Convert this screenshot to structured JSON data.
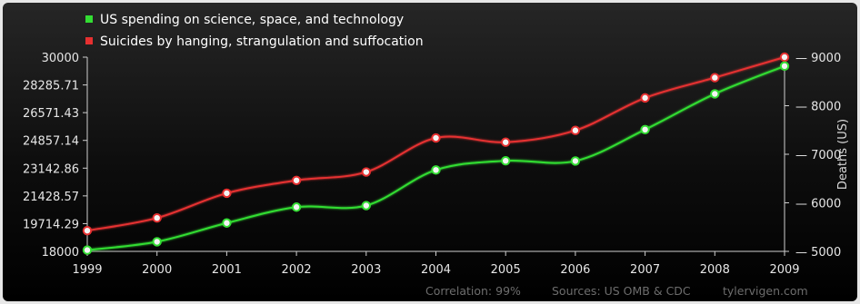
{
  "chart_data": {
    "type": "line",
    "categories": [
      "1999",
      "2000",
      "2001",
      "2002",
      "2003",
      "2004",
      "2005",
      "2006",
      "2007",
      "2008",
      "2009"
    ],
    "series": [
      {
        "name": "US spending on science, space, and technology",
        "axis": "left",
        "color": "#33dd33",
        "values": [
          18079,
          18594,
          19753,
          20734,
          20831,
          23029,
          23597,
          23584,
          25525,
          27731,
          29449
        ]
      },
      {
        "name": "Suicides by hanging, strangulation and suffocation",
        "axis": "right",
        "color": "#e63030",
        "values": [
          5427,
          5688,
          6198,
          6462,
          6635,
          7336,
          7248,
          7491,
          8161,
          8578,
          9000
        ]
      }
    ],
    "y_left": {
      "ylim": [
        18000,
        30000
      ],
      "ticks": [
        "18000",
        "19714.29",
        "21428.57",
        "23142.86",
        "24857.14",
        "26571.43",
        "28285.71",
        "30000"
      ]
    },
    "y_right": {
      "label": "Deaths (US)",
      "ylim": [
        5000,
        9000
      ],
      "ticks": [
        "5000",
        "6000",
        "7000",
        "8000",
        "9000"
      ]
    },
    "legend": "top-left",
    "footer": {
      "correlation": "Correlation: 99%",
      "sources": "Sources: US OMB & CDC",
      "site": "tylervigen.com"
    }
  }
}
